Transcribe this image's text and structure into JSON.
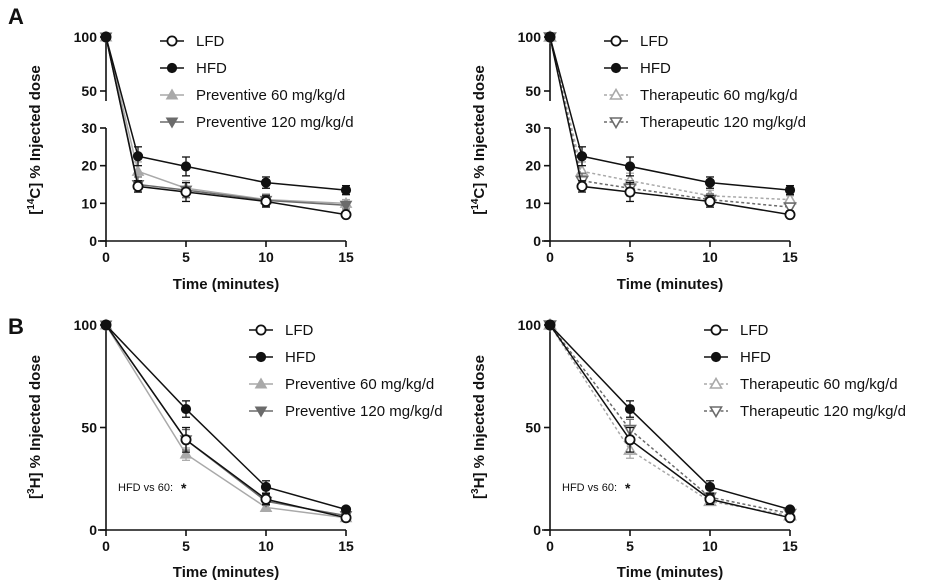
{
  "panels": {
    "a": "A",
    "b": "B"
  },
  "chart_data": [
    {
      "type": "line",
      "panel": "A",
      "ylabel_main": "C] % Injected dose",
      "ylabel_bracket": "[",
      "ylabel_sup": "14",
      "xlabel": "Time (minutes)",
      "x": [
        0,
        2,
        5,
        10,
        15
      ],
      "xticks": [
        "0",
        "5",
        "10",
        "15"
      ],
      "yticks": [
        "0",
        "10",
        "20",
        "30",
        "50",
        "100"
      ],
      "axis_break": "y between 30 and 50",
      "error_bars": true,
      "legend_position": "top-right",
      "series": [
        {
          "name": "LFD",
          "values": [
            100,
            14.5,
            13,
            10.5,
            7
          ],
          "marker": "open-circle",
          "color": "#111111",
          "dash": "solid",
          "err": [
            0,
            1.5,
            2.5,
            1.5,
            0.8
          ]
        },
        {
          "name": "HFD",
          "values": [
            100,
            22.5,
            19.8,
            15.5,
            13.5
          ],
          "marker": "filled-circle",
          "color": "#111111",
          "dash": "solid",
          "err": [
            0,
            2.5,
            2.5,
            1.5,
            1.2
          ]
        },
        {
          "name": "Preventive 60 mg/kg/d",
          "values": [
            100,
            18.5,
            14,
            11,
            10
          ],
          "marker": "triangle-up",
          "color": "#a9a9a9",
          "dash": "solid",
          "err": [
            0,
            2.5,
            2,
            1.5,
            1
          ]
        },
        {
          "name": "Preventive 120 mg/kg/d",
          "values": [
            100,
            15,
            13.5,
            10.8,
            9.5
          ],
          "marker": "triangle-down",
          "color": "#6b6b6b",
          "dash": "solid",
          "err": [
            0,
            2,
            2,
            1.5,
            1
          ]
        }
      ]
    },
    {
      "type": "line",
      "panel": "A",
      "ylabel_main": "C] % Injected dose",
      "ylabel_bracket": "[",
      "ylabel_sup": "14",
      "xlabel": "Time (minutes)",
      "x": [
        0,
        2,
        5,
        10,
        15
      ],
      "xticks": [
        "0",
        "5",
        "10",
        "15"
      ],
      "yticks": [
        "0",
        "10",
        "20",
        "30",
        "50",
        "100"
      ],
      "axis_break": "y between 30 and 50",
      "error_bars": true,
      "legend_position": "top-right",
      "series": [
        {
          "name": "LFD",
          "values": [
            100,
            14.5,
            13,
            10.5,
            7
          ],
          "marker": "open-circle",
          "color": "#111111",
          "dash": "solid",
          "err": [
            0,
            1.5,
            2.5,
            1.5,
            0.8
          ]
        },
        {
          "name": "HFD",
          "values": [
            100,
            22.5,
            19.8,
            15.5,
            13.5
          ],
          "marker": "filled-circle",
          "color": "#111111",
          "dash": "solid",
          "err": [
            0,
            2.5,
            2.5,
            1.5,
            1.2
          ]
        },
        {
          "name": "Therapeutic 60 mg/kg/d",
          "values": [
            100,
            18.5,
            16,
            12,
            11
          ],
          "marker": "open-triangle-up",
          "color": "#a9a9a9",
          "dash": "dashed",
          "err": [
            0,
            2.5,
            2,
            1.5,
            1
          ]
        },
        {
          "name": "Therapeutic 120 mg/kg/d",
          "values": [
            100,
            16,
            14,
            11,
            9
          ],
          "marker": "open-triangle-down",
          "color": "#6b6b6b",
          "dash": "dashed",
          "err": [
            0,
            2,
            2,
            1.5,
            1
          ]
        }
      ]
    },
    {
      "type": "line",
      "panel": "B",
      "ylabel_main": "H] % Injected dose",
      "ylabel_bracket": "[",
      "ylabel_sup": "3",
      "xlabel": "Time (minutes)",
      "x": [
        0,
        5,
        10,
        15
      ],
      "xticks": [
        "0",
        "5",
        "10",
        "15"
      ],
      "yticks": [
        "0",
        "50",
        "100"
      ],
      "ylim": [
        0,
        100
      ],
      "error_bars": true,
      "legend_position": "top-right",
      "annotation": {
        "label": "HFD vs 60:",
        "mark": "*"
      },
      "series": [
        {
          "name": "LFD",
          "values": [
            100,
            44,
            15,
            6
          ],
          "marker": "open-circle",
          "color": "#111111",
          "dash": "solid",
          "err": [
            0,
            6,
            2.5,
            1
          ]
        },
        {
          "name": "HFD",
          "values": [
            100,
            59,
            21,
            10
          ],
          "marker": "filled-circle",
          "color": "#111111",
          "dash": "solid",
          "err": [
            0,
            4,
            3,
            1
          ]
        },
        {
          "name": "Preventive 60 mg/kg/d",
          "values": [
            100,
            37,
            11,
            6
          ],
          "marker": "triangle-up",
          "color": "#a9a9a9",
          "dash": "solid",
          "err": [
            0,
            3,
            1.5,
            1
          ]
        },
        {
          "name": "Preventive 120 mg/kg/d",
          "values": [
            100,
            44,
            14,
            7
          ],
          "marker": "triangle-down",
          "color": "#6b6b6b",
          "dash": "solid",
          "err": [
            0,
            5,
            2,
            1
          ]
        }
      ]
    },
    {
      "type": "line",
      "panel": "B",
      "ylabel_main": "H] % Injected dose",
      "ylabel_bracket": "[",
      "ylabel_sup": "3",
      "xlabel": "Time (minutes)",
      "x": [
        0,
        5,
        10,
        15
      ],
      "xticks": [
        "0",
        "5",
        "10",
        "15"
      ],
      "yticks": [
        "0",
        "50",
        "100"
      ],
      "ylim": [
        0,
        100
      ],
      "error_bars": true,
      "legend_position": "top-right",
      "annotation": {
        "label": "HFD vs 60:",
        "mark": "*"
      },
      "series": [
        {
          "name": "LFD",
          "values": [
            100,
            44,
            15,
            6
          ],
          "marker": "open-circle",
          "color": "#111111",
          "dash": "solid",
          "err": [
            0,
            6,
            2.5,
            1
          ]
        },
        {
          "name": "HFD",
          "values": [
            100,
            59,
            21,
            10
          ],
          "marker": "filled-circle",
          "color": "#111111",
          "dash": "solid",
          "err": [
            0,
            4,
            3,
            1
          ]
        },
        {
          "name": "Therapeutic 60 mg/kg/d",
          "values": [
            100,
            39,
            14,
            7
          ],
          "marker": "open-triangle-up",
          "color": "#a9a9a9",
          "dash": "dashed",
          "err": [
            0,
            4,
            2,
            1
          ]
        },
        {
          "name": "Therapeutic 120 mg/kg/d",
          "values": [
            100,
            49,
            16,
            8
          ],
          "marker": "open-triangle-down",
          "color": "#6b6b6b",
          "dash": "dashed",
          "err": [
            0,
            5,
            2,
            1
          ]
        }
      ]
    }
  ]
}
